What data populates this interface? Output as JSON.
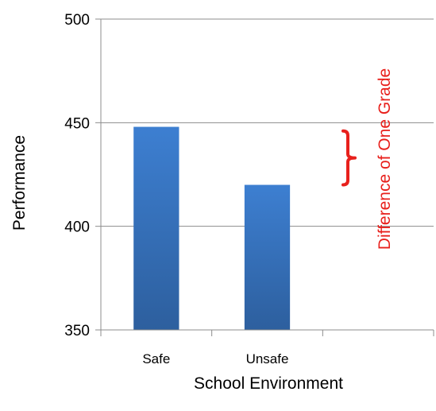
{
  "chart_data": {
    "type": "bar",
    "categories": [
      "Safe",
      "Unsafe",
      ""
    ],
    "values": [
      448,
      420,
      null
    ],
    "title": "",
    "xlabel": "School Environment",
    "ylabel": "Performance",
    "ylim": [
      350,
      500
    ],
    "yticks": [
      350,
      400,
      450,
      500
    ],
    "grid": true,
    "legend": "none",
    "bar_color": "#3a75c4",
    "annotation": {
      "text": "Difference of One Grade",
      "from": 420,
      "to": 446,
      "color": "#e8201c"
    }
  }
}
